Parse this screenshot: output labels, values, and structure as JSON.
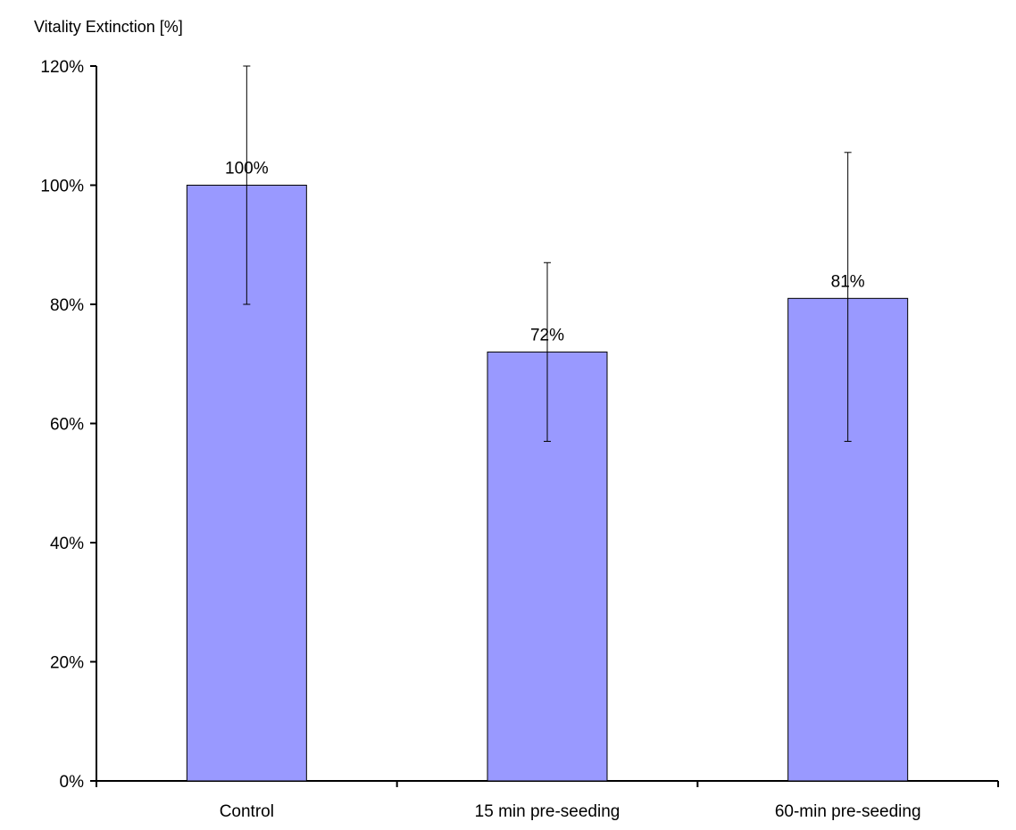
{
  "chart_data": {
    "type": "bar",
    "title": "",
    "xlabel": "",
    "ylabel": "Vitality Extinction [%]",
    "ylim": [
      0,
      120
    ],
    "yticks": [
      "0%",
      "20%",
      "40%",
      "60%",
      "80%",
      "100%",
      "120%"
    ],
    "categories": [
      "Control",
      "15 min pre-seeding",
      "60-min pre-seeding"
    ],
    "values": [
      100,
      72,
      81
    ],
    "data_labels": [
      "100%",
      "72%",
      "81%"
    ],
    "error_bars": [
      {
        "low": 80,
        "high": 120
      },
      {
        "low": 57,
        "high": 87
      },
      {
        "low": 57,
        "high": 105.5
      }
    ],
    "bar_color": "#9999ff",
    "grid": false,
    "legend": "none"
  }
}
